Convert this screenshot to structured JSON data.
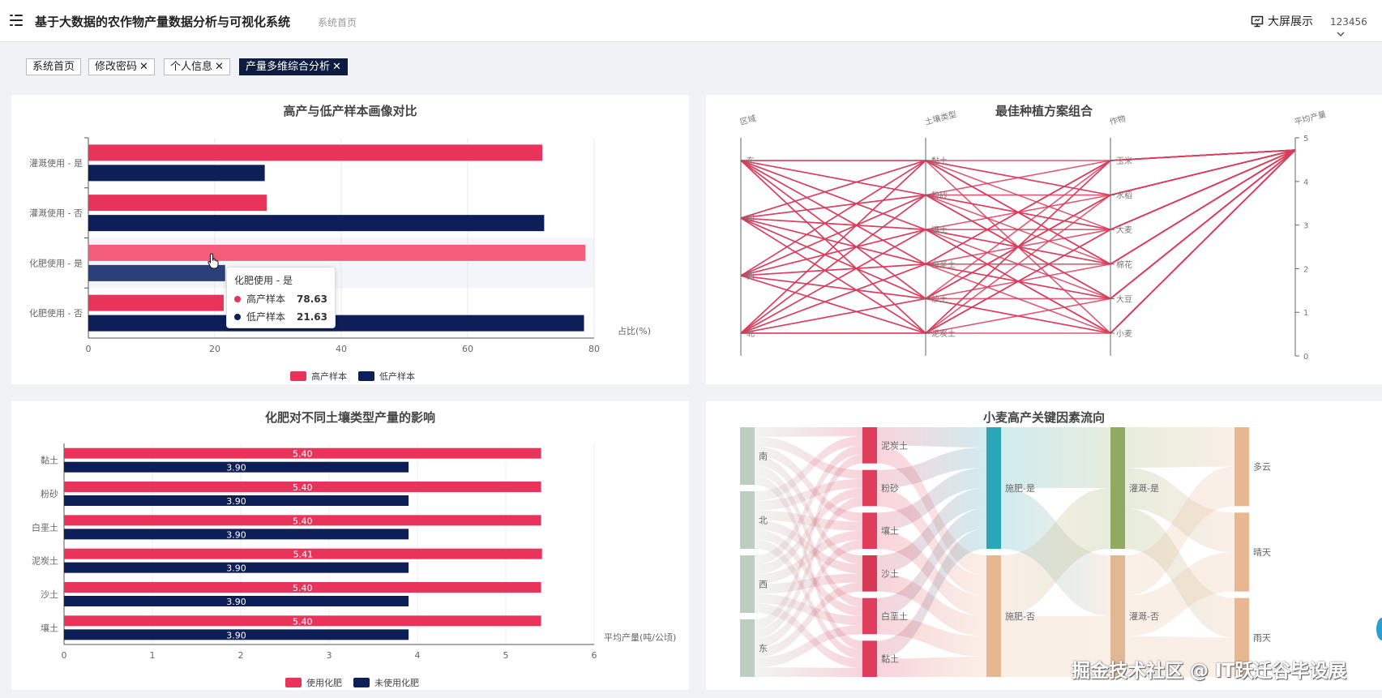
{
  "header": {
    "title": "基于大数据的农作物产量数据分析与可视化系统",
    "breadcrumb": "系统首页",
    "big_screen": "大屏展示",
    "user": "123456"
  },
  "tabs": [
    {
      "label": "系统首页",
      "closable": false,
      "active": false
    },
    {
      "label": "修改密码",
      "closable": true,
      "active": false
    },
    {
      "label": "个人信息",
      "closable": true,
      "active": false
    },
    {
      "label": "产量多维综合分析",
      "closable": true,
      "active": true
    }
  ],
  "colors": {
    "high": "#e8345a",
    "low": "#0e1e57",
    "line": "#d93c5c"
  },
  "chart_data": [
    {
      "type": "bar",
      "orientation": "horizontal",
      "title": "高产与低产样本画像对比",
      "categories": [
        "灌溉使用 - 是",
        "灌溉使用 - 否",
        "化肥使用 - 是",
        "化肥使用 - 否"
      ],
      "series": [
        {
          "name": "高产样本",
          "values": [
            71.8,
            28.2,
            78.63,
            21.4
          ]
        },
        {
          "name": "低产样本",
          "values": [
            27.9,
            72.1,
            21.63,
            78.4
          ]
        }
      ],
      "xlabel": "占比(%)",
      "xlim": [
        0,
        80
      ],
      "xticks": [
        0,
        20,
        40,
        60,
        80
      ],
      "grid": true,
      "legend_position": "bottom-center",
      "tooltip": {
        "title": "化肥使用 - 是",
        "rows": [
          {
            "name": "高产样本",
            "value": "78.63"
          },
          {
            "name": "低产样本",
            "value": "21.63"
          }
        ]
      }
    },
    {
      "type": "parallel",
      "title": "最佳种植方案组合",
      "axes": [
        {
          "name": "区域",
          "labels": [
            "东",
            "南",
            "西",
            "北"
          ]
        },
        {
          "name": "土壤类型",
          "labels": [
            "黏土",
            "粉砂",
            "壤土",
            "白垩土",
            "沙土",
            "泥炭土"
          ]
        },
        {
          "name": "作物",
          "labels": [
            "玉米",
            "水稻",
            "大麦",
            "棉花",
            "大豆",
            "小麦"
          ]
        },
        {
          "name": "平均产量",
          "range": [
            0,
            5
          ],
          "ticks": [
            0,
            1,
            2,
            3,
            4,
            5
          ]
        }
      ],
      "target_value": 4.72
    },
    {
      "type": "bar",
      "orientation": "horizontal",
      "title": "化肥对不同土壤类型产量的影响",
      "categories": [
        "黏土",
        "粉砂",
        "白垩土",
        "泥炭土",
        "沙土",
        "壤土"
      ],
      "series": [
        {
          "name": "使用化肥",
          "values": [
            5.4,
            5.4,
            5.4,
            5.41,
            5.4,
            5.4
          ]
        },
        {
          "name": "未使用化肥",
          "values": [
            3.9,
            3.9,
            3.9,
            3.9,
            3.9,
            3.9
          ]
        }
      ],
      "xlabel": "平均产量(吨/公顷)",
      "xlim": [
        0,
        6
      ],
      "xticks": [
        0,
        1,
        2,
        3,
        4,
        5,
        6
      ],
      "data_labels": true,
      "legend_position": "bottom-center"
    },
    {
      "type": "sankey",
      "title": "小麦高产关键因素流向",
      "columns": [
        [
          "南",
          "北",
          "西",
          "东"
        ],
        [
          "泥炭土",
          "粉砂",
          "壤土",
          "沙土",
          "白垩土",
          "黏土"
        ],
        [
          "施肥-是",
          "施肥-否"
        ],
        [
          "灌溉-是",
          "灌溉-否"
        ],
        [
          "多云",
          "晴天",
          "雨天"
        ]
      ]
    }
  ],
  "watermark": "掘金技术社区 @ IT跃迁谷毕设展"
}
